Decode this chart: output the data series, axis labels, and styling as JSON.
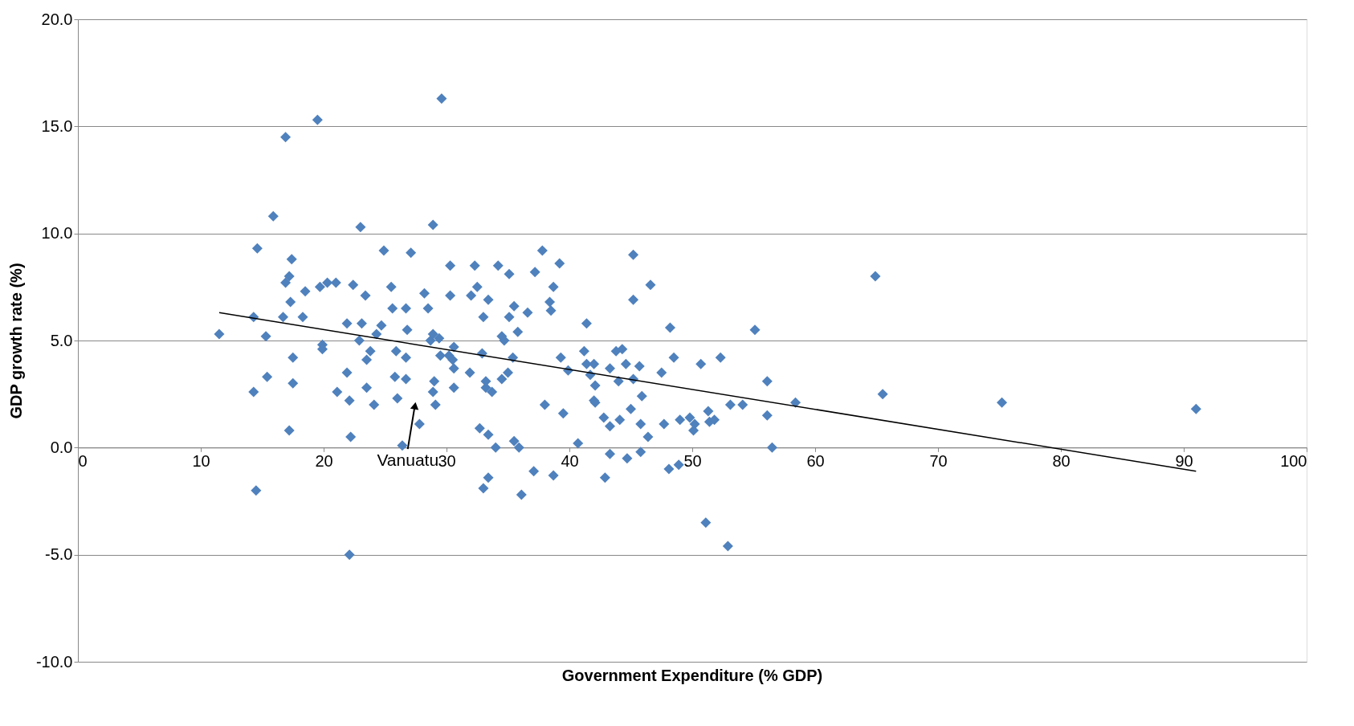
{
  "chart_data": {
    "type": "scatter",
    "xlabel": "Government Expenditure (% GDP)",
    "ylabel": "GDP growth rate (%)",
    "xlim": [
      0,
      100
    ],
    "xticks": [
      0,
      10,
      20,
      30,
      40,
      50,
      60,
      70,
      80,
      90,
      100
    ],
    "ylim": [
      -10,
      20
    ],
    "yticks": [
      {
        "value": -10,
        "label": "-10.0"
      },
      {
        "value": -5,
        "label": "-5.0"
      },
      {
        "value": 0,
        "label": "0.0"
      },
      {
        "value": 5,
        "label": "5.0"
      },
      {
        "value": 10,
        "label": "10.0"
      },
      {
        "value": 15,
        "label": "15.0"
      },
      {
        "value": 20,
        "label": "20.0"
      }
    ],
    "grid": "y",
    "annotations": [
      "Vanuatu"
    ],
    "series": [
      {
        "color": "#4f81bd",
        "marker": "diamond",
        "x": [
          11.5,
          14.3,
          14.3,
          14.6,
          14.5,
          15.3,
          15.4,
          15.9,
          16.7,
          16.9,
          16.9,
          17.2,
          17.2,
          17.3,
          17.4,
          17.5,
          17.5,
          18.3,
          18.5,
          19.5,
          19.7,
          19.9,
          19.9,
          20.3,
          21.0,
          21.1,
          21.9,
          21.9,
          22.1,
          22.2,
          22.1,
          22.4,
          22.9,
          23.0,
          23.1,
          23.4,
          23.5,
          23.5,
          23.8,
          24.1,
          24.3,
          24.7,
          24.9,
          25.5,
          25.6,
          25.9,
          25.8,
          26.0,
          26.4,
          26.7,
          26.8,
          26.7,
          26.7,
          27.1,
          27.8,
          28.2,
          28.5,
          28.7,
          28.9,
          28.9,
          29.0,
          28.9,
          29.1,
          29.4,
          29.5,
          29.6,
          30.3,
          30.2,
          30.3,
          30.5,
          30.6,
          30.6,
          30.6,
          32.0,
          31.9,
          32.3,
          32.5,
          32.9,
          32.7,
          33.0,
          33.2,
          33.2,
          33.0,
          33.4,
          33.4,
          33.4,
          33.7,
          34.0,
          34.2,
          34.5,
          34.7,
          34.5,
          35.0,
          35.1,
          35.1,
          35.4,
          35.5,
          35.5,
          35.8,
          35.9,
          36.1,
          36.6,
          37.1,
          37.2,
          37.8,
          38.0,
          38.4,
          38.5,
          38.7,
          38.7,
          39.2,
          39.3,
          39.5,
          39.9,
          40.7,
          41.2,
          41.4,
          41.4,
          41.7,
          42.0,
          42.1,
          42.1,
          42.0,
          42.8,
          42.9,
          43.3,
          43.3,
          43.3,
          43.8,
          44.0,
          44.1,
          44.3,
          44.6,
          44.7,
          45.0,
          45.2,
          45.2,
          45.2,
          45.7,
          45.8,
          45.9,
          45.8,
          46.4,
          46.6,
          47.5,
          47.7,
          48.1,
          48.2,
          48.5,
          48.9,
          49.0,
          49.8,
          50.1,
          50.2,
          50.7,
          51.1,
          51.3,
          51.4,
          51.8,
          52.3,
          52.9,
          53.1,
          54.1,
          55.1,
          56.1,
          56.1,
          56.5,
          58.4,
          64.9,
          65.5,
          75.2,
          91.0
        ],
        "values": [
          5.3,
          6.1,
          2.6,
          9.3,
          -2.0,
          5.2,
          3.3,
          10.8,
          6.1,
          7.7,
          14.5,
          8.0,
          0.8,
          6.8,
          8.8,
          4.2,
          3.0,
          6.1,
          7.3,
          15.3,
          7.5,
          4.8,
          4.6,
          7.7,
          7.7,
          2.6,
          3.5,
          5.8,
          2.2,
          0.5,
          -5.0,
          7.6,
          5.0,
          10.3,
          5.8,
          7.1,
          4.1,
          2.8,
          4.5,
          2.0,
          5.3,
          5.7,
          9.2,
          7.5,
          6.5,
          4.5,
          3.3,
          2.3,
          0.1,
          6.5,
          5.5,
          4.2,
          3.2,
          9.1,
          1.1,
          7.2,
          6.5,
          5.0,
          5.3,
          10.4,
          3.1,
          2.6,
          2.0,
          5.1,
          4.3,
          16.3,
          7.1,
          4.3,
          8.5,
          4.1,
          3.7,
          2.8,
          4.7,
          7.1,
          3.5,
          8.5,
          7.5,
          4.4,
          0.9,
          6.1,
          2.8,
          3.1,
          -1.9,
          0.6,
          6.9,
          -1.4,
          2.6,
          0.0,
          8.5,
          5.2,
          5.0,
          3.2,
          3.5,
          8.1,
          6.1,
          4.2,
          6.6,
          0.3,
          5.4,
          0.0,
          -2.2,
          6.3,
          -1.1,
          8.2,
          9.2,
          2.0,
          6.8,
          6.4,
          -1.3,
          7.5,
          8.6,
          4.2,
          1.6,
          3.6,
          0.2,
          4.5,
          5.8,
          3.9,
          3.4,
          3.9,
          2.1,
          2.9,
          2.2,
          1.4,
          -1.4,
          1.0,
          -0.3,
          3.7,
          4.5,
          3.1,
          1.3,
          4.6,
          3.9,
          -0.5,
          1.8,
          3.2,
          9.0,
          6.9,
          3.8,
          1.1,
          2.4,
          -0.2,
          0.5,
          7.6,
          3.5,
          1.1,
          -1.0,
          5.6,
          4.2,
          -0.8,
          1.3,
          1.4,
          0.8,
          1.1,
          3.9,
          -3.5,
          1.7,
          1.2,
          1.3,
          4.2,
          -4.6,
          2.0,
          2.0,
          5.5,
          3.1,
          1.5,
          0.0,
          2.1,
          8.0,
          2.5,
          2.1,
          1.8
        ]
      },
      {
        "type": "line",
        "marker": "none",
        "color": "#000000",
        "x": [
          11.5,
          91.0
        ],
        "values": [
          6.3,
          -1.1
        ]
      }
    ]
  }
}
